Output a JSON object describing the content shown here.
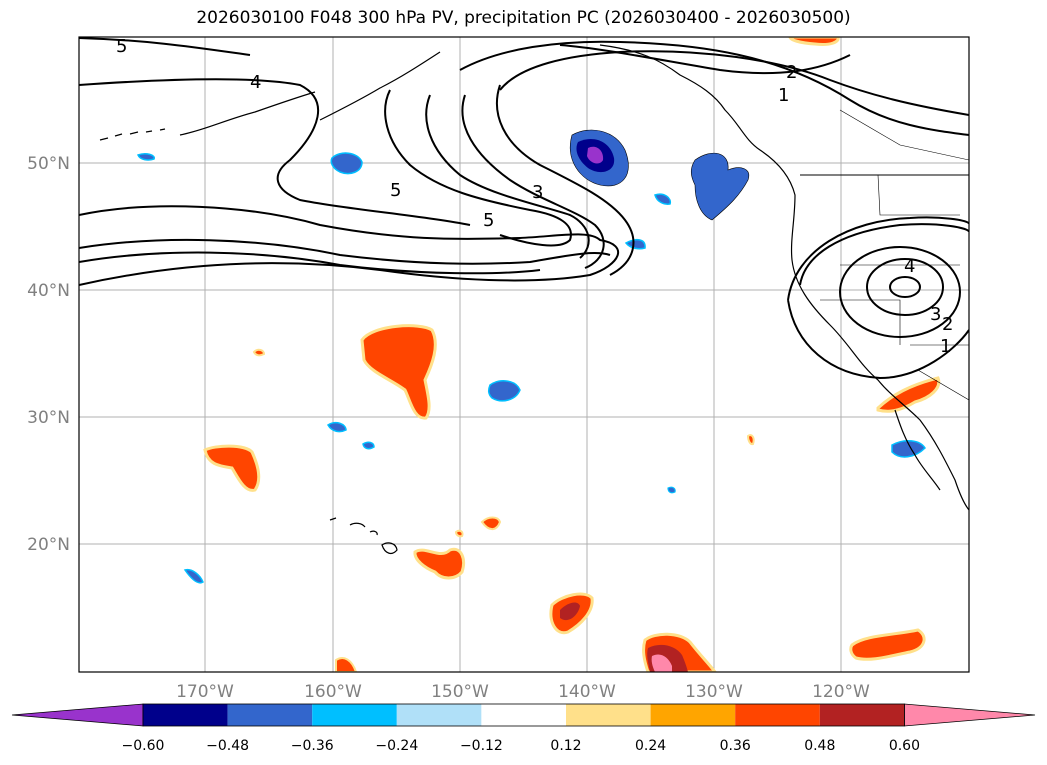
{
  "title": "2026030100 F048 300 hPa PV, precipitation PC (2026030400 - 2026030500)",
  "map": {
    "lon_labels": [
      "170°W",
      "160°W",
      "150°W",
      "140°W",
      "130°W",
      "120°W"
    ],
    "lat_labels": [
      "50°N",
      "40°N",
      "30°N",
      "20°N"
    ],
    "grid": true
  },
  "contours": {
    "labels": [
      "5",
      "4",
      "3",
      "5",
      "2",
      "1",
      "4",
      "3",
      "2",
      "1",
      "5"
    ]
  },
  "colorbar": {
    "ticks": [
      "−0.60",
      "−0.48",
      "−0.36",
      "−0.24",
      "−0.12",
      "0.12",
      "0.24",
      "0.36",
      "0.48",
      "0.60"
    ],
    "colors": [
      "#9933cc",
      "#00008b",
      "#3366cc",
      "#00bfff",
      "#b0e0f8",
      "#ffffff",
      "#ffe08a",
      "#ffa500",
      "#ff4500",
      "#b22222",
      "#ff88aa"
    ],
    "extend": "both"
  }
}
